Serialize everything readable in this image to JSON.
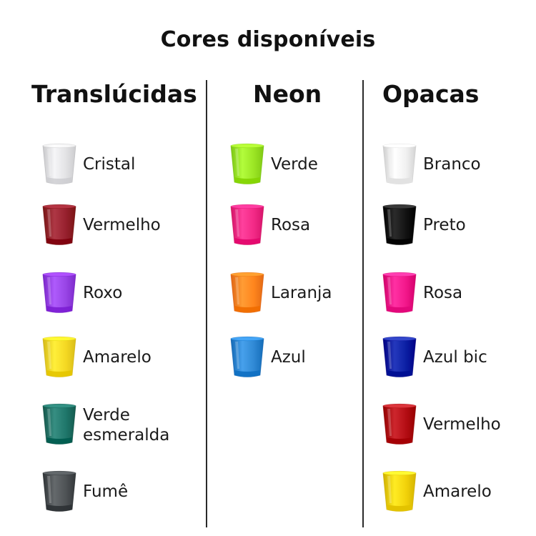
{
  "title": "Cores disponíveis",
  "columns": [
    {
      "heading": "Translúcidas",
      "items": [
        {
          "label": "Cristal",
          "color": "#d9d9dc",
          "alpha": 0.75
        },
        {
          "label": "Vermelho",
          "color": "#8e0d1c",
          "alpha": 0.92
        },
        {
          "label": "Roxo",
          "color": "#8a2be2",
          "alpha": 0.88
        },
        {
          "label": "Amarelo",
          "color": "#f3d40b",
          "alpha": 0.9
        },
        {
          "label": "Verde esmeralda",
          "label_lines": [
            "Verde",
            "esmeralda"
          ],
          "color": "#0c6b5e",
          "alpha": 0.92
        },
        {
          "label": "Fumê",
          "color": "#3b4043",
          "alpha": 0.9
        }
      ]
    },
    {
      "heading": "Neon",
      "items": [
        {
          "label": "Verde",
          "color": "#93e312",
          "alpha": 0.92
        },
        {
          "label": "Rosa",
          "color": "#f2177c",
          "alpha": 0.92
        },
        {
          "label": "Laranja",
          "color": "#ff7b0a",
          "alpha": 0.92
        },
        {
          "label": "Azul",
          "color": "#1e7fd1",
          "alpha": 0.92
        }
      ]
    },
    {
      "heading": "Opacas",
      "items": [
        {
          "label": "Branco",
          "color": "#f1f1f1",
          "alpha": 1
        },
        {
          "label": "Preto",
          "color": "#121212",
          "alpha": 1
        },
        {
          "label": "Rosa",
          "color": "#f2178a",
          "alpha": 1
        },
        {
          "label": "Azul bic",
          "color": "#0b1fa3",
          "alpha": 1
        },
        {
          "label": "Vermelho",
          "color": "#b40d14",
          "alpha": 1
        },
        {
          "label": "Amarelo",
          "color": "#f2d20a",
          "alpha": 1
        }
      ]
    }
  ]
}
